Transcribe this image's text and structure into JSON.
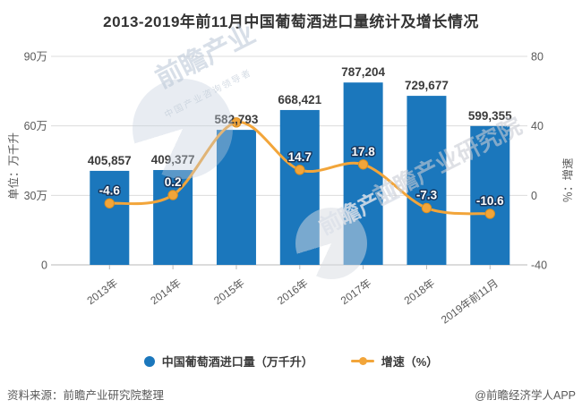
{
  "title": "2013-2019年前11月中国葡萄酒进口量统计及增长情况",
  "chart_data": {
    "type": "bar+line",
    "categories": [
      "2013年",
      "2014年",
      "2015年",
      "2016年",
      "2017年",
      "2018年",
      "2019年前11月"
    ],
    "series": [
      {
        "name": "中国葡萄酒进口量（万千升）",
        "type": "bar",
        "values": [
          405857,
          409377,
          582793,
          668421,
          787204,
          729677,
          599355
        ],
        "labels": [
          "405,857",
          "409,377",
          "582,793",
          "668,421",
          "787,204",
          "729,677",
          "599,355"
        ],
        "color": "#1B77BC",
        "axis": "left"
      },
      {
        "name": "增速（%）",
        "type": "line",
        "values": [
          -4.6,
          0.2,
          42,
          14.7,
          17.8,
          -7.3,
          -10.6
        ],
        "labels": [
          "-4.6",
          "0.2",
          "",
          "14.7",
          "17.8",
          "-7.3",
          "-10.6"
        ],
        "color": "#F2A53A",
        "axis": "right"
      }
    ],
    "left_axis": {
      "label": "单位：万千升",
      "ticks": [
        "90万",
        "60万",
        "30万",
        "0"
      ],
      "tick_values": [
        900000,
        600000,
        300000,
        0
      ],
      "min": 0,
      "max": 900000
    },
    "right_axis": {
      "label": "％：增速",
      "ticks": [
        "80",
        "40",
        "0",
        "-40"
      ],
      "tick_values": [
        80,
        40,
        0,
        -40
      ],
      "min": -40,
      "max": 80
    },
    "grid": true,
    "legend_position": "bottom"
  },
  "legend": {
    "items": [
      {
        "label": "中国葡萄酒进口量（万千升）",
        "marker": "circle",
        "color": "#1B77BC"
      },
      {
        "label": "增速（%）",
        "marker": "line-dot",
        "color": "#F2A53A"
      }
    ]
  },
  "footer": {
    "source": "资料来源：前瞻产业研究院整理",
    "attribution": "@前瞻经济学人APP"
  },
  "watermarks": {
    "brand_short": "前瞻产业",
    "brand_full": "前瞻产业研究院",
    "tagline": "中国产业咨询领导者",
    "logo": "qianzhan-pacman-logo"
  },
  "colors": {
    "bar": "#1B77BC",
    "line": "#F2A53A",
    "marker_edge": "#DD8F1E",
    "title_text": "#333333",
    "axis_text": "#595959",
    "grid": "#DCDCDC",
    "axis_line": "#B9B9B9",
    "bar_label": "#3C3C3C",
    "line_label_fill": "#FFFFFF",
    "line_label_stroke": "#17375E",
    "background": "#FFFFFF"
  }
}
